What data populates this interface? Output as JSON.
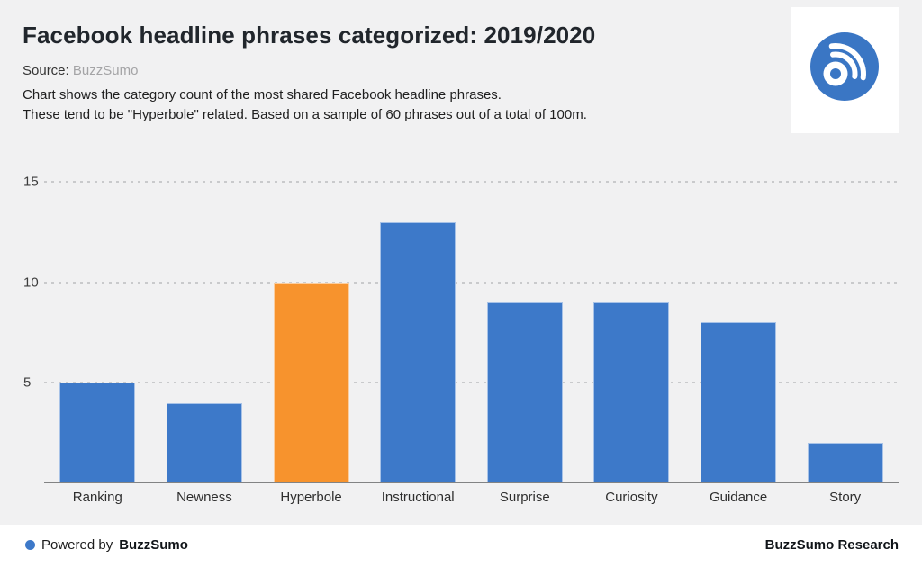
{
  "header": {
    "title": "Facebook headline phrases categorized: 2019/2020",
    "source_label": "Source:",
    "source_value": "BuzzSumo",
    "description_line1": "Chart shows the category count of the most shared Facebook headline phrases.",
    "description_line2": "These tend to be \"Hyperbole\" related. Based on a sample of 60 phrases out of a total of 100m."
  },
  "logo": {
    "name": "buzzsumo-logo",
    "circle_color": "#3a76c4"
  },
  "chart_data": {
    "type": "bar",
    "title": "Facebook headline phrases categorized: 2019/2020",
    "categories": [
      "Ranking",
      "Newness",
      "Hyperbole",
      "Instructional",
      "Surprise",
      "Curiosity",
      "Guidance",
      "Story"
    ],
    "values": [
      5,
      4,
      10,
      13,
      9,
      9,
      8,
      2
    ],
    "highlight_category": "Hyperbole",
    "bar_color": "#3d79c9",
    "highlight_color": "#f7932d",
    "yticks": [
      5,
      10,
      15
    ],
    "ylim": [
      0,
      15
    ],
    "xlabel": "",
    "ylabel": "",
    "grid": "horizontal-dashed",
    "legend": "none"
  },
  "footer": {
    "dot_color": "#3d79c9",
    "powered_by_label": "Powered by",
    "powered_by_brand": "BuzzSumo",
    "right_text": "BuzzSumo Research"
  }
}
